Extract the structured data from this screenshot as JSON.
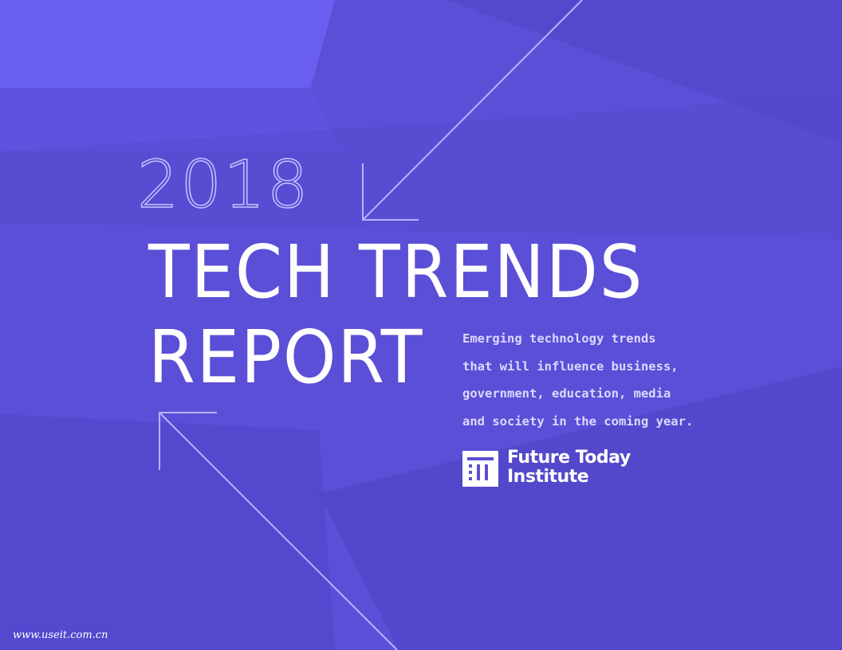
{
  "title": {
    "year": "2018",
    "line1": "TECH TRENDS",
    "line2": "REPORT"
  },
  "subtitle": [
    "Emerging technology trends",
    "that will influence business,",
    "government, education, media",
    "and society in the coming year."
  ],
  "organization": {
    "line1": "Future Today",
    "line2": "Institute"
  },
  "watermark": "www.useit.com.cn"
}
